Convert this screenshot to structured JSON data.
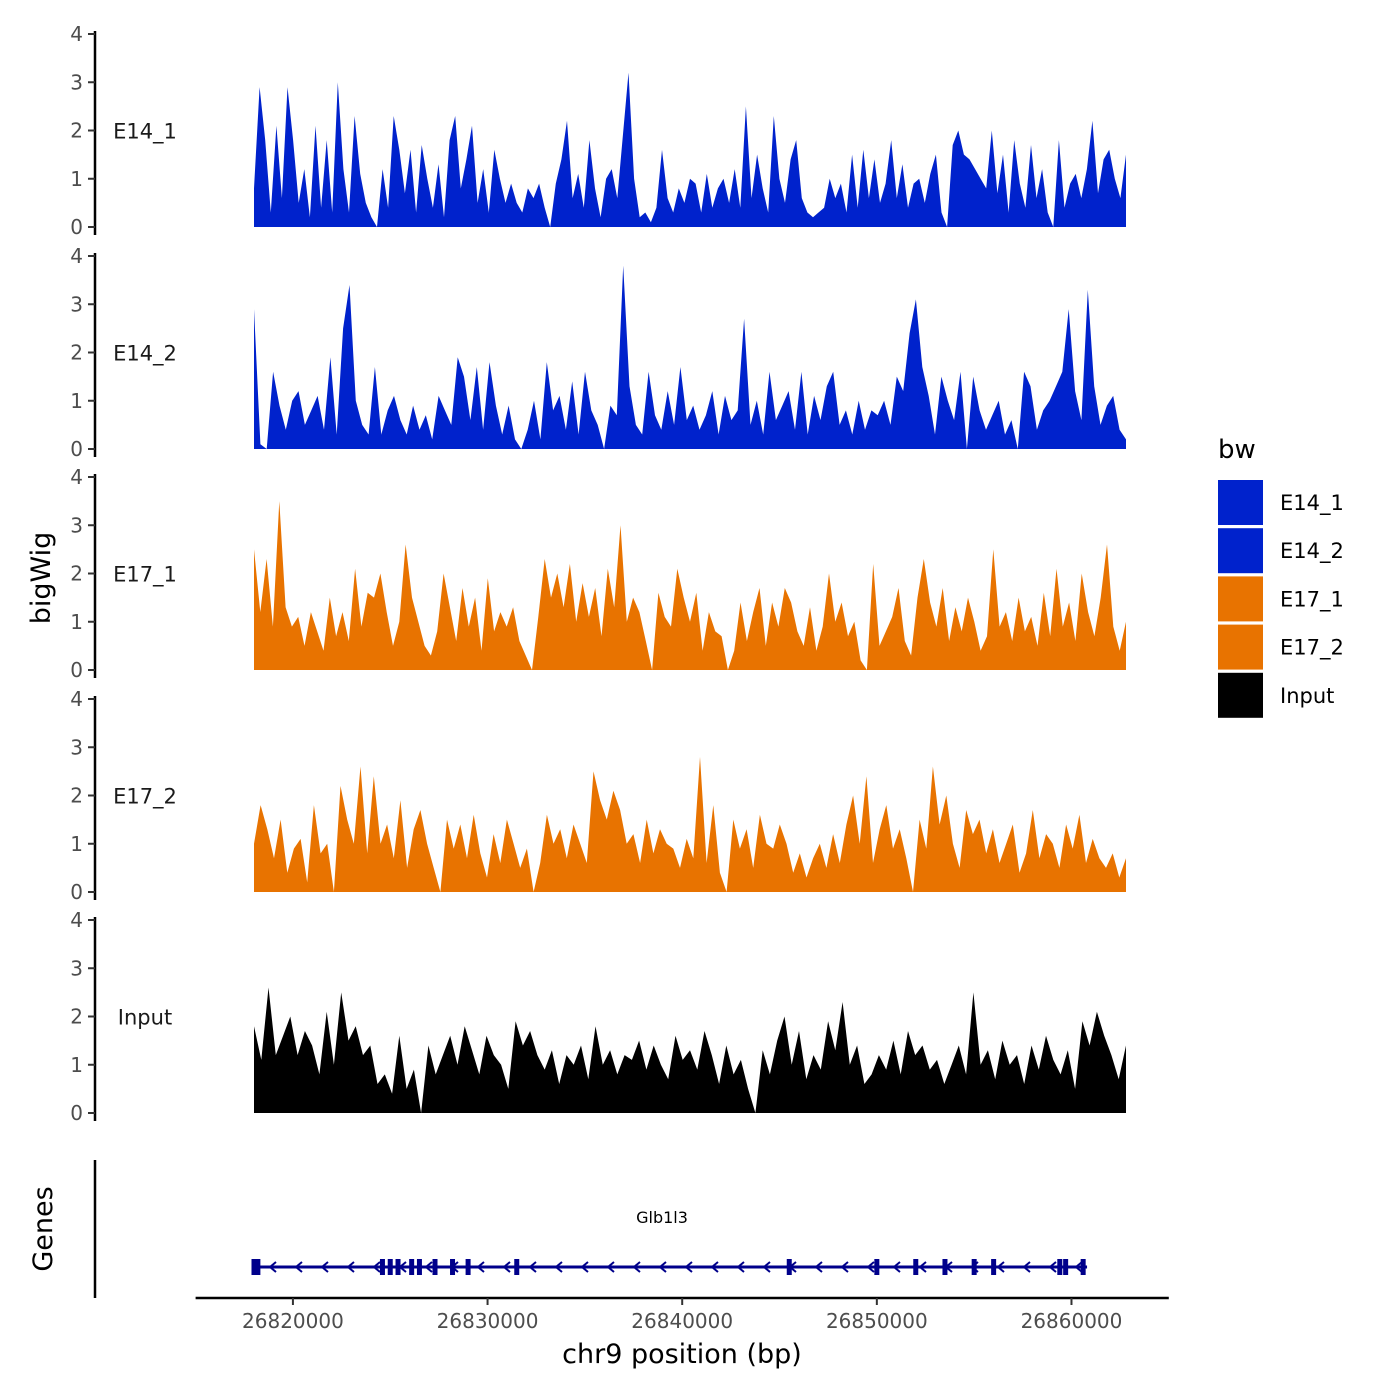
{
  "chart_data": {
    "type": "area",
    "ylabel": "bigWig",
    "xlabel": "chr9 position (bp)",
    "ylim": [
      0,
      4
    ],
    "y_ticks": [
      "0",
      "1",
      "2",
      "3",
      "4"
    ],
    "xlim": [
      26815000,
      26865000
    ],
    "x_ticks": [
      {
        "value": 26820000,
        "label": "26820000"
      },
      {
        "value": 26830000,
        "label": "26830000"
      },
      {
        "value": 26840000,
        "label": "26840000"
      },
      {
        "value": 26850000,
        "label": "26850000"
      },
      {
        "value": 26860000,
        "label": "26860000"
      }
    ],
    "data_range": [
      26818000,
      26862800
    ],
    "legend": {
      "title": "bw",
      "position": "right",
      "entries": [
        {
          "label": "E14_1",
          "color": "#0022CC"
        },
        {
          "label": "E14_2",
          "color": "#0022CC"
        },
        {
          "label": "E17_1",
          "color": "#E87300"
        },
        {
          "label": "E17_2",
          "color": "#E87300"
        },
        {
          "label": "Input",
          "color": "#000000"
        }
      ]
    },
    "series": [
      {
        "name": "E14_1",
        "color": "#0022CC",
        "peak_max": 3.2,
        "values": [
          0.8,
          2.9,
          1.8,
          0.3,
          2.1,
          0.6,
          2.9,
          1.8,
          0.5,
          1.2,
          0.2,
          2.1,
          0.4,
          1.8,
          0.3,
          3.0,
          1.2,
          0.3,
          2.3,
          1.1,
          0.5,
          0.2,
          0.0,
          1.2,
          0.4,
          2.3,
          1.6,
          0.7,
          1.6,
          0.3,
          1.7,
          1.0,
          0.4,
          1.3,
          0.2,
          1.8,
          2.3,
          0.8,
          1.4,
          2.1,
          0.5,
          1.2,
          0.3,
          1.6,
          1.0,
          0.5,
          0.9,
          0.5,
          0.3,
          0.8,
          0.6,
          0.9,
          0.4,
          0.0,
          0.9,
          1.4,
          2.2,
          0.6,
          1.1,
          0.4,
          1.8,
          0.8,
          0.2,
          1.0,
          1.2,
          0.6,
          1.9,
          3.2,
          1.0,
          0.2,
          0.3,
          0.1,
          0.4,
          1.6,
          0.6,
          0.3,
          0.8,
          0.5,
          1.0,
          0.9,
          0.3,
          1.1,
          0.4,
          0.8,
          1.0,
          0.5,
          1.2,
          0.4,
          2.5,
          0.6,
          1.5,
          0.8,
          0.3,
          2.3,
          1.0,
          0.5,
          1.4,
          1.8,
          0.6,
          0.3,
          0.2,
          0.3,
          0.4,
          1.0,
          0.6,
          0.9,
          0.3,
          1.5,
          0.4,
          1.6,
          0.6,
          1.4,
          0.5,
          0.9,
          1.8,
          0.6,
          1.3,
          0.4,
          0.9,
          1.0,
          0.5,
          1.1,
          1.5,
          0.3,
          0.0,
          1.7,
          2.0,
          1.5,
          1.4,
          1.2,
          1.0,
          0.8,
          2.0,
          0.7,
          1.5,
          0.3,
          1.8,
          0.9,
          0.4,
          1.7,
          0.6,
          1.2,
          0.3,
          0.0,
          1.8,
          0.4,
          0.9,
          1.1,
          0.6,
          1.2,
          2.2,
          0.7,
          1.4,
          1.6,
          1.0,
          0.6,
          1.5
        ]
      },
      {
        "name": "E14_2",
        "color": "#0022CC",
        "peak_max": 3.8,
        "values": [
          2.9,
          0.1,
          0.0,
          1.6,
          0.9,
          0.4,
          1.0,
          1.2,
          0.5,
          0.8,
          1.1,
          0.4,
          1.9,
          0.3,
          2.5,
          3.4,
          1.0,
          0.5,
          0.3,
          1.7,
          0.3,
          0.8,
          1.1,
          0.6,
          0.3,
          0.9,
          0.4,
          0.7,
          0.2,
          1.1,
          0.8,
          0.5,
          1.9,
          1.5,
          0.6,
          1.7,
          0.4,
          1.8,
          0.9,
          0.3,
          0.9,
          0.2,
          0.0,
          0.4,
          1.0,
          0.2,
          1.8,
          0.8,
          1.1,
          0.4,
          1.4,
          0.3,
          1.6,
          0.8,
          0.5,
          0.0,
          0.9,
          0.7,
          3.8,
          1.3,
          0.5,
          0.3,
          1.6,
          0.7,
          0.4,
          1.2,
          0.5,
          1.7,
          0.6,
          0.9,
          0.4,
          0.7,
          1.2,
          0.3,
          1.1,
          0.6,
          0.8,
          2.7,
          0.5,
          1.0,
          0.3,
          1.6,
          0.6,
          0.9,
          1.2,
          0.4,
          1.6,
          0.3,
          1.1,
          0.6,
          1.3,
          1.6,
          0.5,
          0.8,
          0.3,
          1.0,
          0.4,
          0.8,
          0.7,
          1.0,
          0.5,
          1.5,
          1.2,
          2.4,
          3.1,
          1.7,
          1.1,
          0.3,
          1.5,
          1.0,
          0.6,
          1.6,
          0.0,
          1.5,
          0.8,
          0.4,
          0.7,
          1.0,
          0.3,
          0.6,
          0.0,
          1.6,
          1.3,
          0.4,
          0.8,
          1.0,
          1.3,
          1.6,
          2.9,
          1.2,
          0.6,
          3.3,
          1.3,
          0.5,
          0.9,
          1.1,
          0.4,
          0.2
        ]
      },
      {
        "name": "E17_1",
        "color": "#E87300",
        "peak_max": 3.5,
        "values": [
          2.5,
          1.2,
          2.3,
          0.9,
          3.5,
          1.3,
          0.9,
          1.1,
          0.5,
          1.2,
          0.8,
          0.4,
          1.5,
          0.7,
          1.2,
          0.6,
          2.1,
          0.9,
          1.6,
          1.5,
          2.0,
          1.2,
          0.5,
          1.0,
          2.6,
          1.5,
          1.0,
          0.5,
          0.3,
          0.8,
          2.0,
          1.3,
          0.6,
          1.7,
          0.9,
          1.5,
          0.4,
          1.9,
          0.8,
          1.2,
          0.9,
          1.3,
          0.6,
          0.3,
          0.0,
          1.1,
          2.3,
          1.5,
          2.0,
          1.3,
          2.2,
          1.0,
          1.8,
          1.1,
          1.7,
          0.7,
          2.1,
          1.3,
          3.0,
          1.0,
          1.5,
          1.2,
          0.6,
          0.0,
          1.6,
          1.1,
          0.9,
          2.1,
          1.5,
          1.0,
          1.6,
          0.4,
          1.2,
          0.8,
          0.7,
          0.0,
          0.4,
          1.4,
          0.6,
          1.2,
          1.7,
          0.5,
          1.4,
          0.9,
          1.7,
          1.4,
          0.8,
          0.5,
          1.3,
          0.4,
          0.9,
          2.0,
          1.0,
          1.4,
          0.7,
          1.0,
          0.2,
          0.0,
          2.2,
          0.5,
          0.8,
          1.1,
          1.7,
          0.6,
          0.3,
          1.5,
          2.3,
          1.4,
          0.9,
          1.7,
          0.6,
          1.3,
          0.8,
          1.5,
          1.0,
          0.4,
          0.7,
          2.5,
          0.9,
          1.2,
          0.6,
          1.5,
          0.8,
          1.1,
          0.5,
          1.6,
          0.7,
          2.1,
          0.9,
          1.4,
          0.6,
          2.0,
          1.2,
          0.7,
          1.5,
          2.6,
          0.9,
          0.4,
          1.0
        ]
      },
      {
        "name": "E17_2",
        "color": "#E87300",
        "peak_max": 2.8,
        "values": [
          1.0,
          1.8,
          1.3,
          0.7,
          1.5,
          0.4,
          0.9,
          1.1,
          0.2,
          1.8,
          0.8,
          1.0,
          0.0,
          2.2,
          1.5,
          1.0,
          2.6,
          0.8,
          2.4,
          1.0,
          1.4,
          0.7,
          1.9,
          0.5,
          1.3,
          1.7,
          1.0,
          0.5,
          0.0,
          1.5,
          0.9,
          1.4,
          0.7,
          1.6,
          0.8,
          0.3,
          1.2,
          0.6,
          1.5,
          1.0,
          0.5,
          0.9,
          0.0,
          0.6,
          1.6,
          1.0,
          1.3,
          0.7,
          1.4,
          1.0,
          0.6,
          2.5,
          1.9,
          1.5,
          2.1,
          1.7,
          1.0,
          1.2,
          0.6,
          1.5,
          0.8,
          1.3,
          1.0,
          0.9,
          0.5,
          1.1,
          0.7,
          2.8,
          0.6,
          1.8,
          0.4,
          0.0,
          1.5,
          0.9,
          1.3,
          0.5,
          1.6,
          1.0,
          0.9,
          1.4,
          1.0,
          0.4,
          0.8,
          0.3,
          0.7,
          1.0,
          0.5,
          1.2,
          0.6,
          1.4,
          2.0,
          1.0,
          2.4,
          0.6,
          1.3,
          1.8,
          0.9,
          1.3,
          0.7,
          0.0,
          1.5,
          0.9,
          2.6,
          1.4,
          2.0,
          1.0,
          0.5,
          1.7,
          1.2,
          1.5,
          0.8,
          1.3,
          0.6,
          1.0,
          1.4,
          0.4,
          0.8,
          1.7,
          0.7,
          1.2,
          1.0,
          0.5,
          1.4,
          0.9,
          1.6,
          0.6,
          1.1,
          0.7,
          0.5,
          0.8,
          0.3,
          0.7
        ]
      },
      {
        "name": "Input",
        "color": "#000000",
        "peak_max": 2.6,
        "values": [
          1.8,
          1.1,
          2.6,
          1.2,
          1.6,
          2.0,
          1.2,
          1.7,
          1.4,
          0.8,
          2.1,
          1.0,
          2.5,
          1.5,
          1.8,
          1.2,
          1.4,
          0.6,
          0.8,
          0.4,
          1.6,
          0.5,
          0.9,
          0.0,
          1.4,
          0.8,
          1.2,
          1.6,
          1.0,
          1.8,
          1.3,
          0.8,
          1.6,
          1.2,
          1.0,
          0.5,
          1.9,
          1.4,
          1.7,
          1.2,
          0.9,
          1.3,
          0.6,
          1.2,
          1.0,
          1.4,
          0.7,
          1.8,
          1.0,
          1.3,
          0.8,
          1.2,
          1.1,
          1.5,
          0.9,
          1.4,
          1.0,
          0.7,
          1.6,
          1.1,
          1.3,
          0.9,
          1.7,
          1.2,
          0.6,
          1.4,
          0.8,
          1.1,
          0.5,
          0.0,
          1.3,
          0.8,
          1.5,
          2.0,
          1.0,
          1.7,
          0.7,
          1.2,
          0.9,
          1.9,
          1.3,
          2.3,
          1.0,
          1.4,
          0.6,
          0.8,
          1.2,
          0.9,
          1.5,
          0.8,
          1.7,
          1.2,
          1.4,
          0.9,
          1.1,
          0.6,
          1.0,
          1.4,
          0.8,
          2.5,
          1.0,
          1.3,
          0.7,
          1.5,
          1.0,
          1.2,
          0.6,
          1.4,
          0.9,
          1.6,
          1.1,
          0.8,
          1.3,
          0.5,
          1.9,
          1.4,
          2.1,
          1.6,
          1.2,
          0.7,
          1.4
        ]
      }
    ],
    "genes_track": {
      "label": "Genes",
      "gene_name": "Glb1l3",
      "gene_color": "#00008B",
      "start": 26818000,
      "end": 26860800,
      "strand": "-",
      "exons": [
        26818000,
        26818200,
        26824600,
        26825000,
        26825400,
        26826100,
        26826500,
        26827300,
        26828200,
        26829000,
        26831500,
        26845500,
        26850000,
        26852000,
        26853500,
        26855000,
        26856000,
        26859400,
        26859700,
        26860600
      ]
    }
  }
}
